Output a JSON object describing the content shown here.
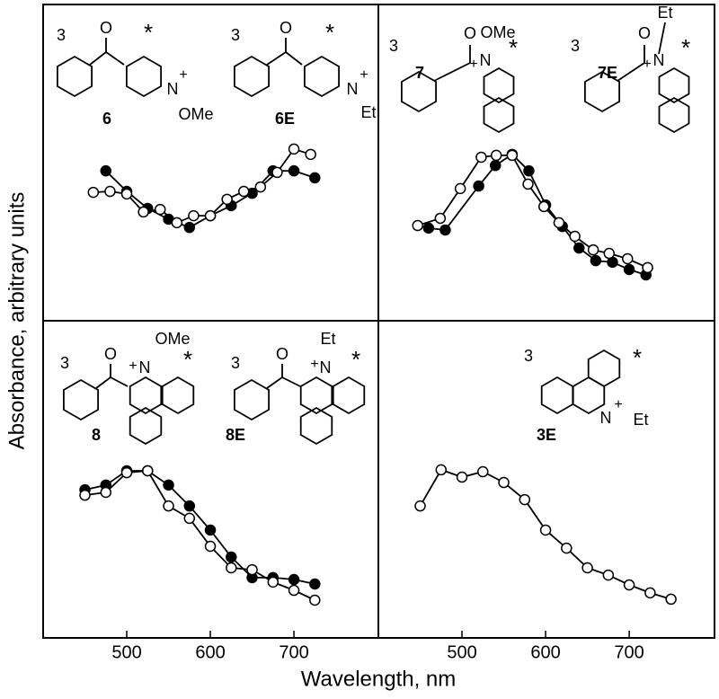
{
  "axis_labels": {
    "x": "Wavelength, nm",
    "y": "Absorbance, arbitrary units"
  },
  "chart_data": [
    {
      "type": "line",
      "xlim": [
        400,
        801
      ],
      "ylim": [
        0,
        100
      ],
      "annotations": [
        "3",
        "O",
        "*",
        "N",
        "+",
        "OMe",
        "3",
        "O",
        "*",
        "N",
        "+",
        "Et"
      ],
      "series": [
        {
          "name": "6",
          "color": "#000000",
          "marker": "filled",
          "x": [
            475,
            500,
            525,
            550,
            575,
            600,
            625,
            650,
            675,
            700,
            725
          ],
          "values": [
            47.4,
            40.9,
            35.5,
            32.1,
            29.5,
            33.2,
            36.4,
            40.3,
            47.4,
            47.4,
            45.2
          ]
        },
        {
          "name": "6E",
          "color": "#000000",
          "marker": "open",
          "x": [
            460,
            480,
            500,
            520,
            540,
            560,
            580,
            600,
            620,
            640,
            660,
            680,
            700,
            720
          ],
          "values": [
            40.6,
            40.9,
            40.1,
            34.4,
            35.2,
            31.0,
            33.2,
            33.2,
            38.4,
            40.9,
            42.3,
            46.9,
            54.3,
            52.6
          ]
        }
      ]
    },
    {
      "type": "line",
      "xlim": [
        400,
        802
      ],
      "ylim": [
        0,
        100
      ],
      "annotations": [
        "3",
        "O",
        "OMe",
        "+",
        "N",
        "*",
        "3",
        "O",
        "Et",
        "+",
        "N",
        "*"
      ],
      "series": [
        {
          "name": "7",
          "color": "#000000",
          "marker": "filled",
          "x": [
            460,
            480,
            520,
            540,
            560,
            580,
            600,
            620,
            640,
            660,
            680,
            700,
            720
          ],
          "values": [
            29.3,
            28.7,
            42.6,
            49.1,
            52.6,
            47.4,
            36.6,
            29.8,
            23.0,
            19.0,
            18.5,
            16.2,
            14.5
          ]
        },
        {
          "name": "7E",
          "color": "#000000",
          "marker": "open",
          "x": [
            447,
            474,
            498,
            523,
            541,
            560,
            579,
            598,
            616,
            635,
            657,
            676,
            698,
            722
          ],
          "values": [
            30.1,
            32.4,
            41.8,
            51.7,
            52.3,
            52.3,
            43.2,
            36.1,
            31.0,
            26.7,
            22.4,
            21.3,
            19.6,
            16.8
          ]
        }
      ]
    },
    {
      "type": "line",
      "xlim": [
        400,
        801
      ],
      "ylim": [
        0,
        100
      ],
      "xticks": [
        500,
        600,
        700
      ],
      "annotations": [
        "3",
        "O",
        "OMe",
        "+",
        "N",
        "*",
        "3",
        "O",
        "Et",
        "+",
        "N",
        "*"
      ],
      "series": [
        {
          "name": "8",
          "color": "#000000",
          "marker": "filled",
          "x": [
            450,
            475,
            500,
            525,
            550,
            575,
            600,
            625,
            650,
            675,
            700,
            725
          ],
          "values": [
            46.7,
            48.2,
            52.7,
            52.7,
            48.2,
            41.6,
            34.0,
            25.5,
            19.0,
            19.0,
            18.4,
            17.0
          ]
        },
        {
          "name": "8E",
          "color": "#000000",
          "marker": "open",
          "x": [
            450,
            475,
            500,
            525,
            550,
            575,
            600,
            625,
            650,
            675,
            700,
            725
          ],
          "values": [
            45.0,
            45.9,
            52.1,
            52.7,
            41.6,
            37.7,
            28.9,
            22.1,
            21.5,
            17.6,
            15.0,
            11.9
          ]
        }
      ]
    },
    {
      "type": "line",
      "xlim": [
        400,
        802
      ],
      "ylim": [
        0,
        100
      ],
      "xticks": [
        500,
        600,
        700
      ],
      "annotations": [
        "3",
        "*",
        "N",
        "+",
        "Et"
      ],
      "series": [
        {
          "name": "3E",
          "color": "#000000",
          "marker": "open",
          "x": [
            450,
            475,
            500,
            525,
            550,
            575,
            600,
            625,
            650,
            675,
            700,
            725,
            750
          ],
          "values": [
            41.6,
            53.0,
            50.7,
            52.4,
            49.0,
            43.6,
            34.0,
            28.3,
            22.1,
            19.8,
            16.7,
            14.2,
            12.2
          ]
        }
      ]
    }
  ]
}
